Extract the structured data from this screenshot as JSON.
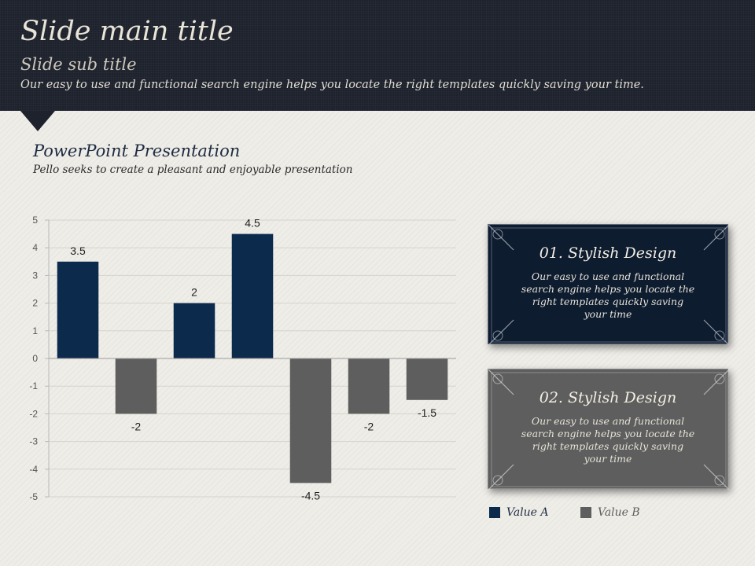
{
  "header": {
    "title": "Slide main title",
    "subtitle": "Slide sub title",
    "description": "Our easy to use and functional search engine helps you locate the right templates quickly saving your time."
  },
  "section": {
    "title": "PowerPoint Presentation",
    "subtitle": "Pello seeks to create a pleasant and enjoyable presentation"
  },
  "cards": [
    {
      "title": "01. Stylish Design",
      "text": "Our easy to use and functional search engine helps you locate the right templates  quickly saving your time"
    },
    {
      "title": "02. Stylish Design",
      "text": "Our easy to use and functional search engine helps you locate the right templates  quickly saving your time"
    }
  ],
  "colors": {
    "value_a": "#0c2a4c",
    "value_b": "#5e5e5e",
    "header_bg": "#1d222d"
  },
  "chart_data": {
    "type": "bar",
    "categories": [
      "",
      "",
      "",
      "",
      "",
      "",
      ""
    ],
    "values": [
      3.5,
      -2,
      2,
      4.5,
      -4.5,
      -2,
      -1.5
    ],
    "series_assignment": [
      "Value A",
      "Value B",
      "Value A",
      "Value A",
      "Value B",
      "Value B",
      "Value B"
    ],
    "data_labels": [
      "3.5",
      "-2",
      "2",
      "4.5",
      "-4.5",
      "-2",
      "-1.5"
    ],
    "series": [
      {
        "name": "Value A",
        "color": "#0c2a4c"
      },
      {
        "name": "Value B",
        "color": "#5e5e5e"
      }
    ],
    "ylim": [
      -5,
      5
    ],
    "yticks": [
      "5",
      "4",
      "3",
      "2",
      "1",
      "0",
      "-1",
      "-2",
      "-3",
      "-4",
      "-5"
    ],
    "grid": true,
    "legend": "bottom-right"
  }
}
